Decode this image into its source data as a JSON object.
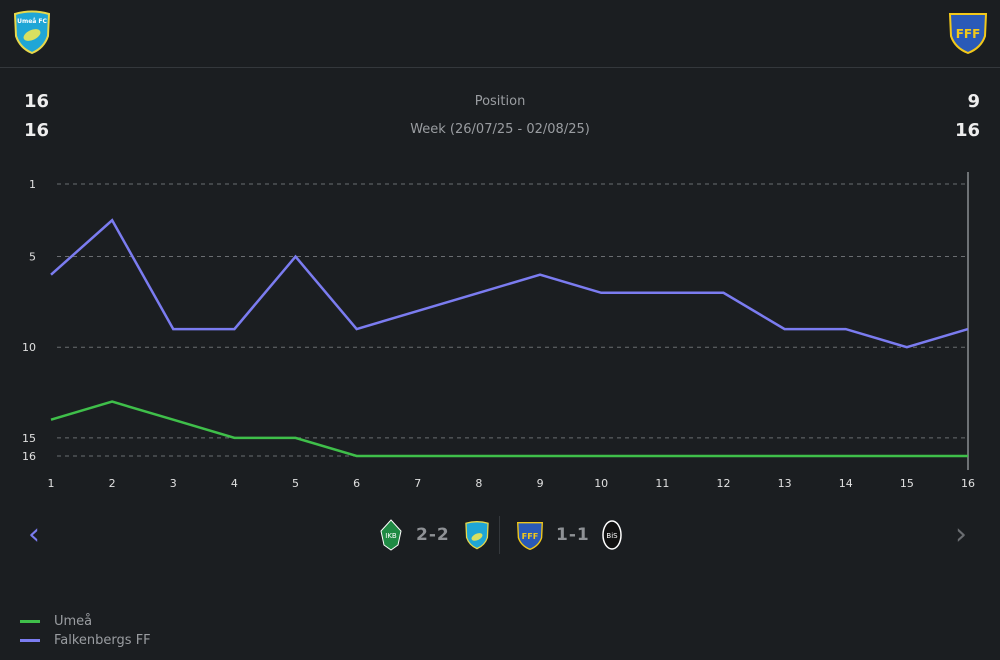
{
  "header": {
    "home_crest": "Umeå FC",
    "away_crest": "Falkenbergs FF"
  },
  "summary": {
    "home_position": "16",
    "home_week": "16",
    "away_position": "9",
    "away_week": "16",
    "title": "Position",
    "subtitle": "Week (26/07/25 - 02/08/25)"
  },
  "chart_data": {
    "type": "line",
    "x": [
      1,
      2,
      3,
      4,
      5,
      6,
      7,
      8,
      9,
      10,
      11,
      12,
      13,
      14,
      15,
      16
    ],
    "y_ticks": [
      1,
      5,
      10,
      15,
      16
    ],
    "ylim": [
      16,
      1
    ],
    "series": [
      {
        "name": "Umeå",
        "color": "#3fbf4a",
        "values": [
          14,
          13,
          14,
          15,
          15,
          16,
          16,
          16,
          16,
          16,
          16,
          16,
          16,
          16,
          16,
          16
        ]
      },
      {
        "name": "Falkenbergs FF",
        "color": "#7b7cf0",
        "values": [
          6,
          3,
          9,
          9,
          5,
          9,
          8,
          7,
          6,
          7,
          7,
          7,
          9,
          9,
          10,
          9
        ]
      }
    ],
    "selected_week": 16
  },
  "matches": [
    {
      "score": "2-2",
      "home": "IK Brage",
      "away": "Umeå FC"
    },
    {
      "score": "1-1",
      "home": "Falkenbergs FF",
      "away": "Landskrona BoIS"
    }
  ],
  "nav": {
    "prev": "‹",
    "next": "›"
  },
  "legend": [
    {
      "label": "Umeå",
      "color": "#3fbf4a"
    },
    {
      "label": "Falkenbergs FF",
      "color": "#7b7cf0"
    }
  ]
}
